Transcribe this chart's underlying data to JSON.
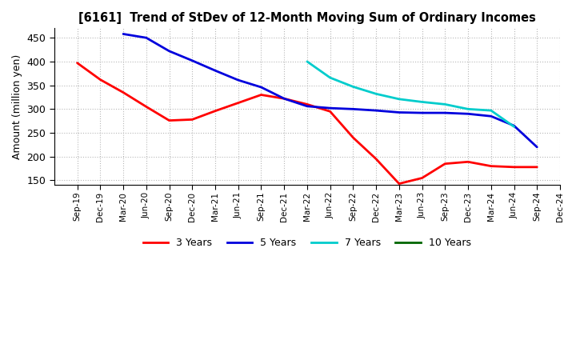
{
  "title": "[6161]  Trend of StDev of 12-Month Moving Sum of Ordinary Incomes",
  "ylabel": "Amount (million yen)",
  "ylim": [
    140,
    470
  ],
  "yticks": [
    150,
    200,
    250,
    300,
    350,
    400,
    450
  ],
  "background_color": "#ffffff",
  "plot_bg_color": "#ffffff",
  "grid_color": "#b0b0b0",
  "x_labels": [
    "Sep-19",
    "Dec-19",
    "Mar-20",
    "Jun-20",
    "Sep-20",
    "Dec-20",
    "Mar-21",
    "Jun-21",
    "Sep-21",
    "Dec-21",
    "Mar-22",
    "Jun-22",
    "Sep-22",
    "Dec-22",
    "Mar-23",
    "Jun-23",
    "Sep-23",
    "Dec-23",
    "Mar-24",
    "Jun-24",
    "Sep-24",
    "Dec-24"
  ],
  "series": {
    "3 Years": {
      "color": "#ff0000",
      "linewidth": 2.0,
      "data": [
        397,
        362,
        335,
        305,
        276,
        278,
        296,
        313,
        330,
        322,
        310,
        295,
        240,
        195,
        143,
        155,
        185,
        189,
        180,
        178,
        178,
        null
      ]
    },
    "5 Years": {
      "color": "#0000dd",
      "linewidth": 2.0,
      "data": [
        null,
        null,
        458,
        450,
        422,
        402,
        381,
        361,
        346,
        322,
        306,
        302,
        300,
        297,
        293,
        292,
        292,
        290,
        285,
        265,
        220,
        null
      ]
    },
    "7 Years": {
      "color": "#00cccc",
      "linewidth": 2.0,
      "data": [
        null,
        null,
        null,
        null,
        null,
        null,
        null,
        null,
        null,
        null,
        400,
        366,
        347,
        332,
        321,
        315,
        310,
        300,
        297,
        263,
        null,
        null
      ]
    },
    "10 Years": {
      "color": "#006600",
      "linewidth": 2.0,
      "data": [
        null,
        null,
        null,
        null,
        null,
        null,
        null,
        null,
        null,
        null,
        null,
        null,
        null,
        null,
        null,
        null,
        null,
        null,
        null,
        null,
        null,
        null
      ]
    }
  },
  "legend_order": [
    "3 Years",
    "5 Years",
    "7 Years",
    "10 Years"
  ],
  "legend_colors": {
    "3 Years": "#ff0000",
    "5 Years": "#0000dd",
    "7 Years": "#00cccc",
    "10 Years": "#006600"
  }
}
